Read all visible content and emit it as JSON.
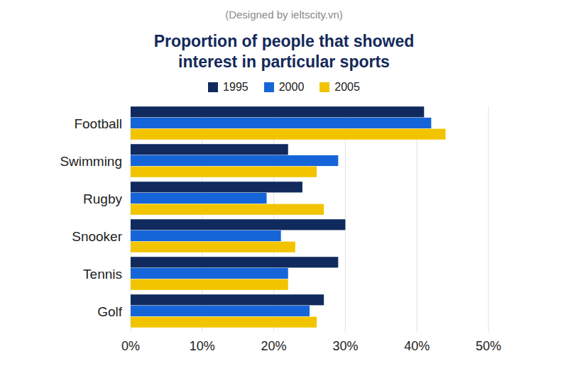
{
  "chart_data": {
    "type": "bar",
    "orientation": "horizontal",
    "subtitle": "(Designed by ieltscity.vn)",
    "title": "Proportion of people that showed interest in particular sports",
    "categories": [
      "Football",
      "Swimming",
      "Rugby",
      "Snooker",
      "Tennis",
      "Golf"
    ],
    "series": [
      {
        "name": "1995",
        "color": "#102a5e",
        "values": [
          41,
          22,
          24,
          30,
          29,
          27
        ]
      },
      {
        "name": "2000",
        "color": "#1565d8",
        "values": [
          42,
          29,
          19,
          21,
          22,
          25
        ]
      },
      {
        "name": "2005",
        "color": "#f2c400",
        "values": [
          44,
          26,
          27,
          23,
          22,
          26
        ]
      }
    ],
    "xlim": [
      0,
      50
    ],
    "xticks": [
      {
        "value": 0,
        "label": "0%"
      },
      {
        "value": 10,
        "label": "10%"
      },
      {
        "value": 20,
        "label": "20%"
      },
      {
        "value": 30,
        "label": "30%"
      },
      {
        "value": 40,
        "label": "40%"
      },
      {
        "value": 50,
        "label": "50%"
      }
    ],
    "grid": true,
    "legend": "top"
  }
}
